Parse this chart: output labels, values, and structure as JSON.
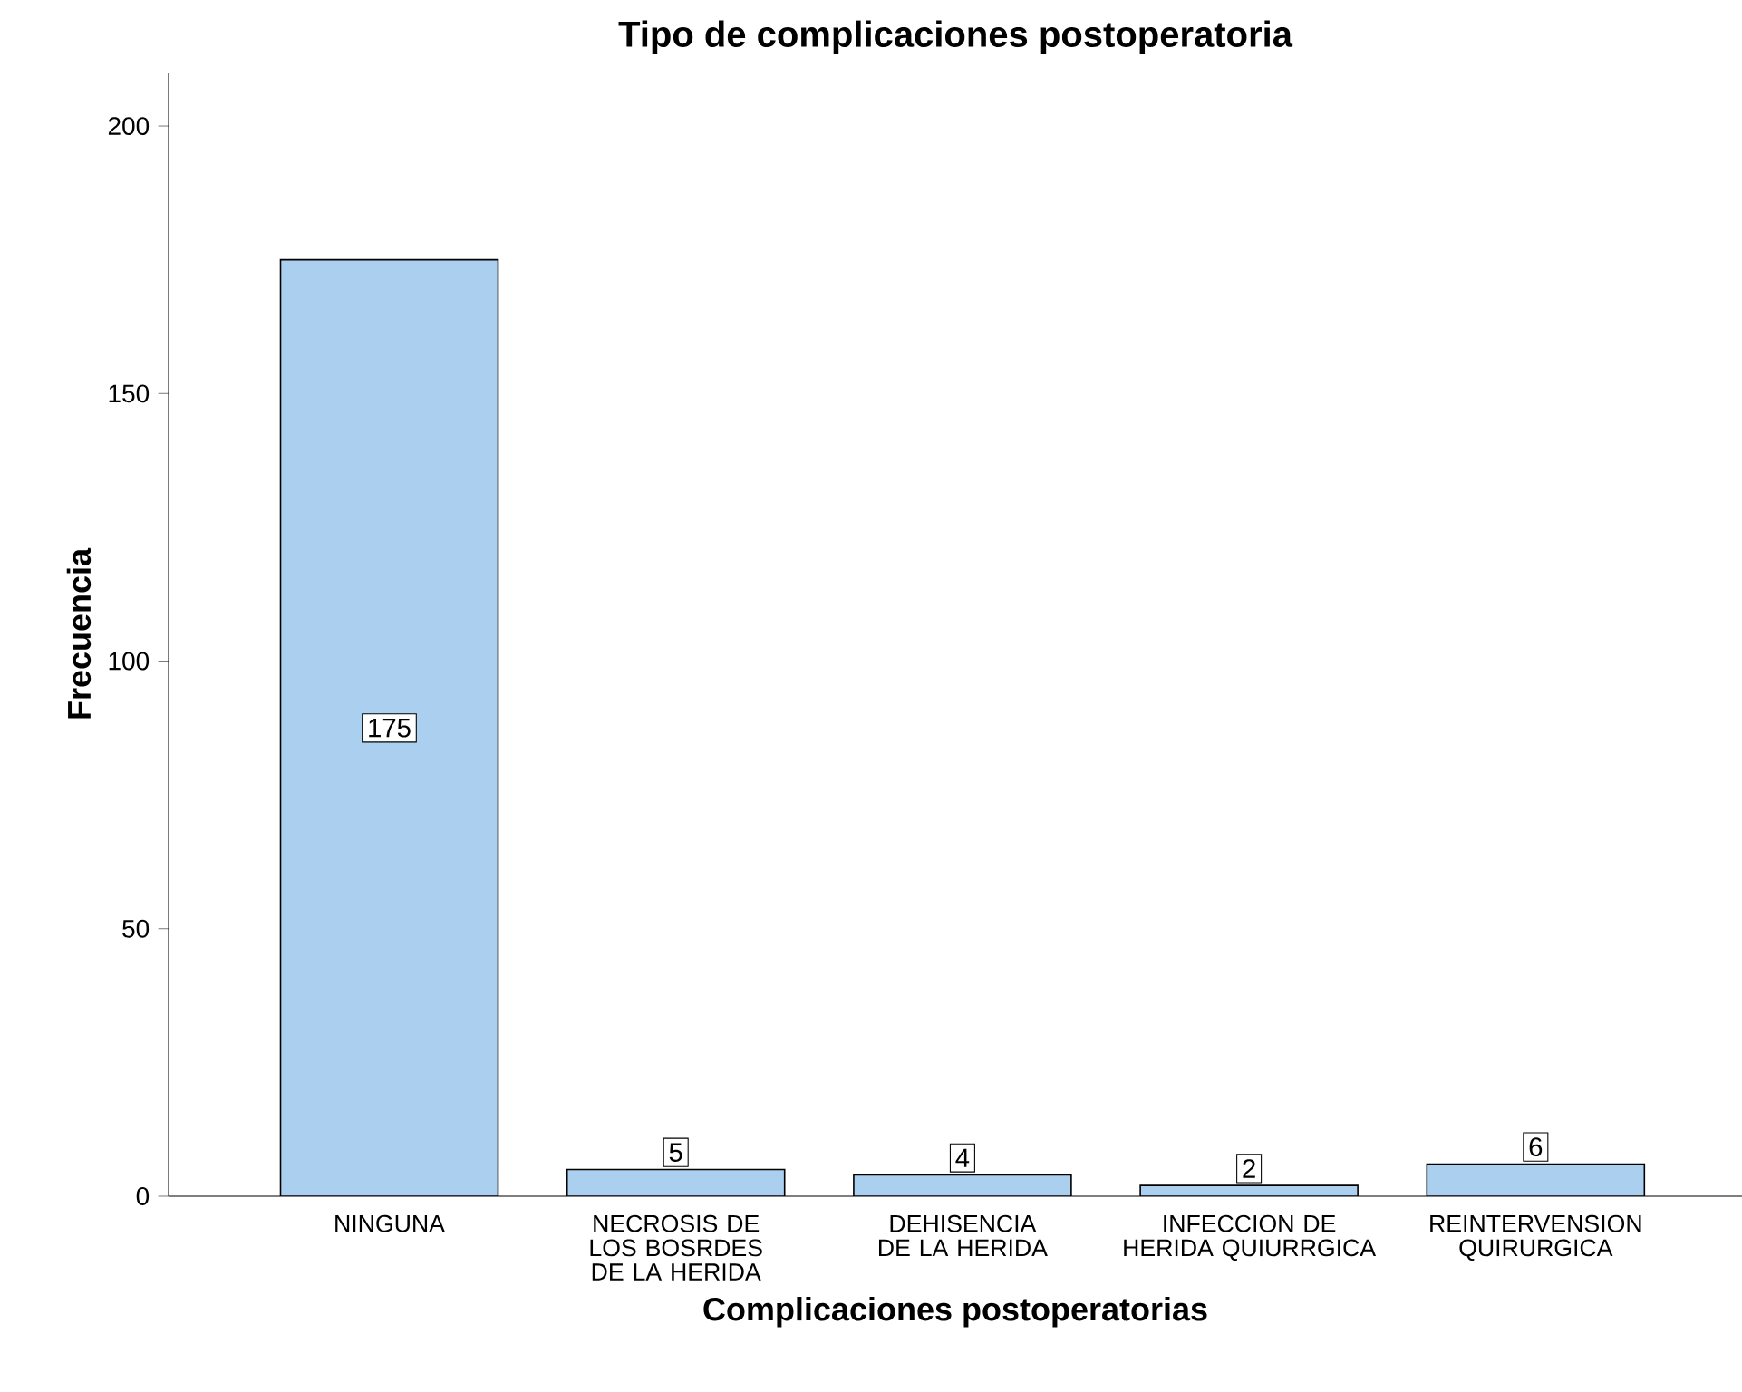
{
  "chart_data": {
    "type": "bar",
    "title": "Tipo de complicaciones postoperatoria",
    "xlabel": "Complicaciones postoperatorias",
    "ylabel": "Frecuencia",
    "categories": [
      "NINGUNA",
      "NECROSIS DE LOS BOSRDES DE LA HERIDA",
      "DEHISENCIA DE LA HERIDA",
      "INFECCION DE HERIDA QUIURRGICA",
      "REINTERVENSION QUIRURGICA"
    ],
    "values": [
      175,
      5,
      4,
      2,
      6
    ],
    "color": "#abcfee",
    "ylim": [
      0,
      210
    ],
    "yticks": [
      0,
      50,
      100,
      150,
      200
    ],
    "data_labels": true
  }
}
